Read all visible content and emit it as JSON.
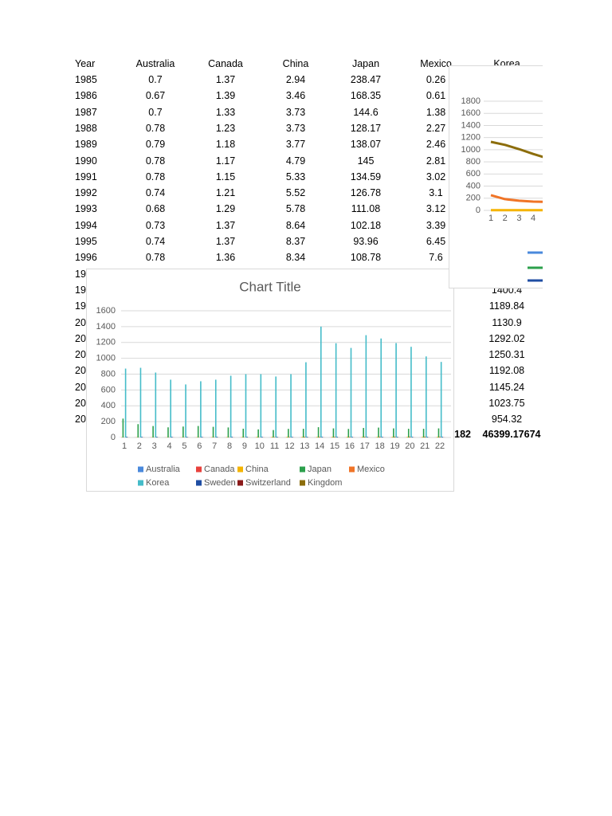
{
  "table": {
    "header": [
      "Year",
      "Australia",
      "Canada",
      "China",
      "Japan",
      "Mexico",
      "Korea"
    ],
    "rows": [
      [
        "1985",
        "0.7",
        "1.37",
        "2.94",
        "238.47",
        "0.26",
        null
      ],
      [
        "1986",
        "0.67",
        "1.39",
        "3.46",
        "168.35",
        "0.61",
        null
      ],
      [
        "1987",
        "0.7",
        "1.33",
        "3.73",
        "144.6",
        "1.38",
        null
      ],
      [
        "1988",
        "0.78",
        "1.23",
        "3.73",
        "128.17",
        "2.27",
        null
      ],
      [
        "1989",
        "0.79",
        "1.18",
        "3.77",
        "138.07",
        "2.46",
        null
      ],
      [
        "1990",
        "0.78",
        "1.17",
        "4.79",
        "145",
        "2.81",
        null
      ],
      [
        "1991",
        "0.78",
        "1.15",
        "5.33",
        "134.59",
        "3.02",
        null
      ],
      [
        "1992",
        "0.74",
        "1.21",
        "5.52",
        "126.78",
        "3.1",
        null
      ],
      [
        "1993",
        "0.68",
        "1.29",
        "5.78",
        "111.08",
        "3.12",
        null
      ],
      [
        "1994",
        "0.73",
        "1.37",
        "8.64",
        "102.18",
        "3.39",
        null
      ],
      [
        "1995",
        "0.74",
        "1.37",
        "8.37",
        "93.96",
        "6.45",
        null
      ],
      [
        "1996",
        "0.78",
        "1.36",
        "8.34",
        "108.78",
        "7.6",
        null
      ],
      [
        "19",
        null,
        null,
        null,
        null,
        null,
        null
      ],
      [
        "19",
        null,
        null,
        null,
        null,
        null,
        "1400.4"
      ],
      [
        "19",
        null,
        null,
        null,
        null,
        null,
        "1189.84"
      ],
      [
        "20",
        null,
        null,
        null,
        null,
        null,
        "1130.9"
      ],
      [
        "20",
        null,
        null,
        null,
        null,
        null,
        "1292.02"
      ],
      [
        "20",
        null,
        null,
        null,
        null,
        null,
        "1250.31"
      ],
      [
        "20",
        null,
        null,
        null,
        null,
        null,
        "1192.08"
      ],
      [
        "20",
        null,
        null,
        null,
        null,
        null,
        "1145.24"
      ],
      [
        "20",
        null,
        null,
        null,
        null,
        null,
        "1023.75"
      ],
      [
        "20",
        null,
        null,
        null,
        null,
        null,
        "954.32"
      ]
    ],
    "totals": [
      "182",
      "46399.17674"
    ]
  },
  "chart_data": [
    {
      "type": "bar",
      "title": "Chart Title",
      "categories": [
        "1",
        "2",
        "3",
        "4",
        "5",
        "6",
        "7",
        "8",
        "9",
        "10",
        "11",
        "12",
        "13",
        "14",
        "15",
        "16",
        "17",
        "18",
        "19",
        "20",
        "21",
        "22"
      ],
      "ylim": [
        0,
        1600
      ],
      "yticks": [
        0,
        200,
        400,
        600,
        800,
        1000,
        1200,
        1400,
        1600
      ],
      "grid": true,
      "series": [
        {
          "name": "Australia",
          "color": "#4a89dc",
          "values": [
            0.7,
            0.67,
            0.7,
            0.78,
            0.79,
            0.78,
            0.78,
            0.74,
            0.68,
            0.73,
            0.74,
            0.78,
            0.8,
            0.8,
            0.8,
            0.8,
            0.8,
            0.8,
            0.8,
            0.8,
            0.8,
            0.8
          ]
        },
        {
          "name": "Canada",
          "color": "#e8413c",
          "values": [
            1.37,
            1.39,
            1.33,
            1.23,
            1.18,
            1.17,
            1.15,
            1.21,
            1.29,
            1.37,
            1.37,
            1.36,
            1.4,
            1.4,
            1.4,
            1.4,
            1.4,
            1.4,
            1.4,
            1.4,
            1.4,
            1.4
          ]
        },
        {
          "name": "China",
          "color": "#f5b400",
          "values": [
            2.94,
            3.46,
            3.73,
            3.73,
            3.77,
            4.79,
            5.33,
            5.52,
            5.78,
            8.64,
            8.37,
            8.34,
            8,
            8,
            8,
            8,
            8,
            8,
            8,
            8,
            8,
            8
          ]
        },
        {
          "name": "Japan",
          "color": "#2ca04c",
          "values": [
            238.47,
            168.35,
            144.6,
            128.17,
            138.07,
            145,
            134.59,
            126.78,
            111.08,
            102.18,
            93.96,
            108.78,
            110,
            130,
            115,
            108,
            120,
            125,
            115,
            110,
            110,
            115
          ]
        },
        {
          "name": "Mexico",
          "color": "#f07427",
          "values": [
            0.26,
            0.61,
            1.38,
            2.27,
            2.46,
            2.81,
            3.02,
            3.1,
            3.12,
            3.39,
            6.45,
            7.6,
            9.5,
            9.2,
            9.6,
            9.3,
            9.7,
            10.8,
            11.3,
            11.3,
            10.9,
            11
          ]
        },
        {
          "name": "Korea",
          "color": "#45bcc9",
          "values": [
            870,
            880,
            820,
            730,
            670,
            710,
            730,
            780,
            800,
            800,
            770,
            800,
            950,
            1400.4,
            1189.84,
            1130.9,
            1292.02,
            1250.31,
            1192.08,
            1145.24,
            1023.75,
            954.32
          ]
        },
        {
          "name": "Sweden",
          "color": "#1f4ea3",
          "values": [
            8,
            8,
            8,
            8,
            8,
            8,
            8,
            8,
            8,
            8,
            8,
            8,
            8,
            8,
            8,
            8,
            8,
            8,
            8,
            8,
            8,
            8
          ]
        },
        {
          "name": "Switzerland",
          "color": "#8b1a1a",
          "values": [
            1.5,
            1.5,
            1.5,
            1.5,
            1.5,
            1.5,
            1.5,
            1.5,
            1.5,
            1.5,
            1.5,
            1.5,
            1.5,
            1.5,
            1.5,
            1.5,
            1.5,
            1.5,
            1.5,
            1.5,
            1.5,
            1.5
          ]
        },
        {
          "name": "Kingdom",
          "color": "#8c6d0b",
          "values": [
            0.6,
            0.6,
            0.6,
            0.6,
            0.6,
            0.6,
            0.6,
            0.6,
            0.6,
            0.6,
            0.6,
            0.6,
            0.6,
            0.6,
            0.6,
            0.6,
            0.6,
            0.6,
            0.6,
            0.6,
            0.6,
            0.6
          ]
        }
      ]
    },
    {
      "type": "line",
      "categories": [
        1,
        2,
        3,
        4,
        null
      ],
      "ylim": [
        0,
        1800
      ],
      "yticks": [
        0,
        200,
        400,
        600,
        800,
        1000,
        1200,
        1400,
        1600,
        1800
      ],
      "grid": true,
      "series": [
        {
          "color": "#8c6d0b",
          "values": [
            1130,
            1080,
            1010,
            930,
            860
          ]
        },
        {
          "color": "#f07427",
          "values": [
            250,
            185,
            160,
            145,
            140
          ]
        },
        {
          "color": "#f5b400",
          "values": [
            3,
            3,
            4,
            4,
            4
          ]
        }
      ]
    }
  ]
}
